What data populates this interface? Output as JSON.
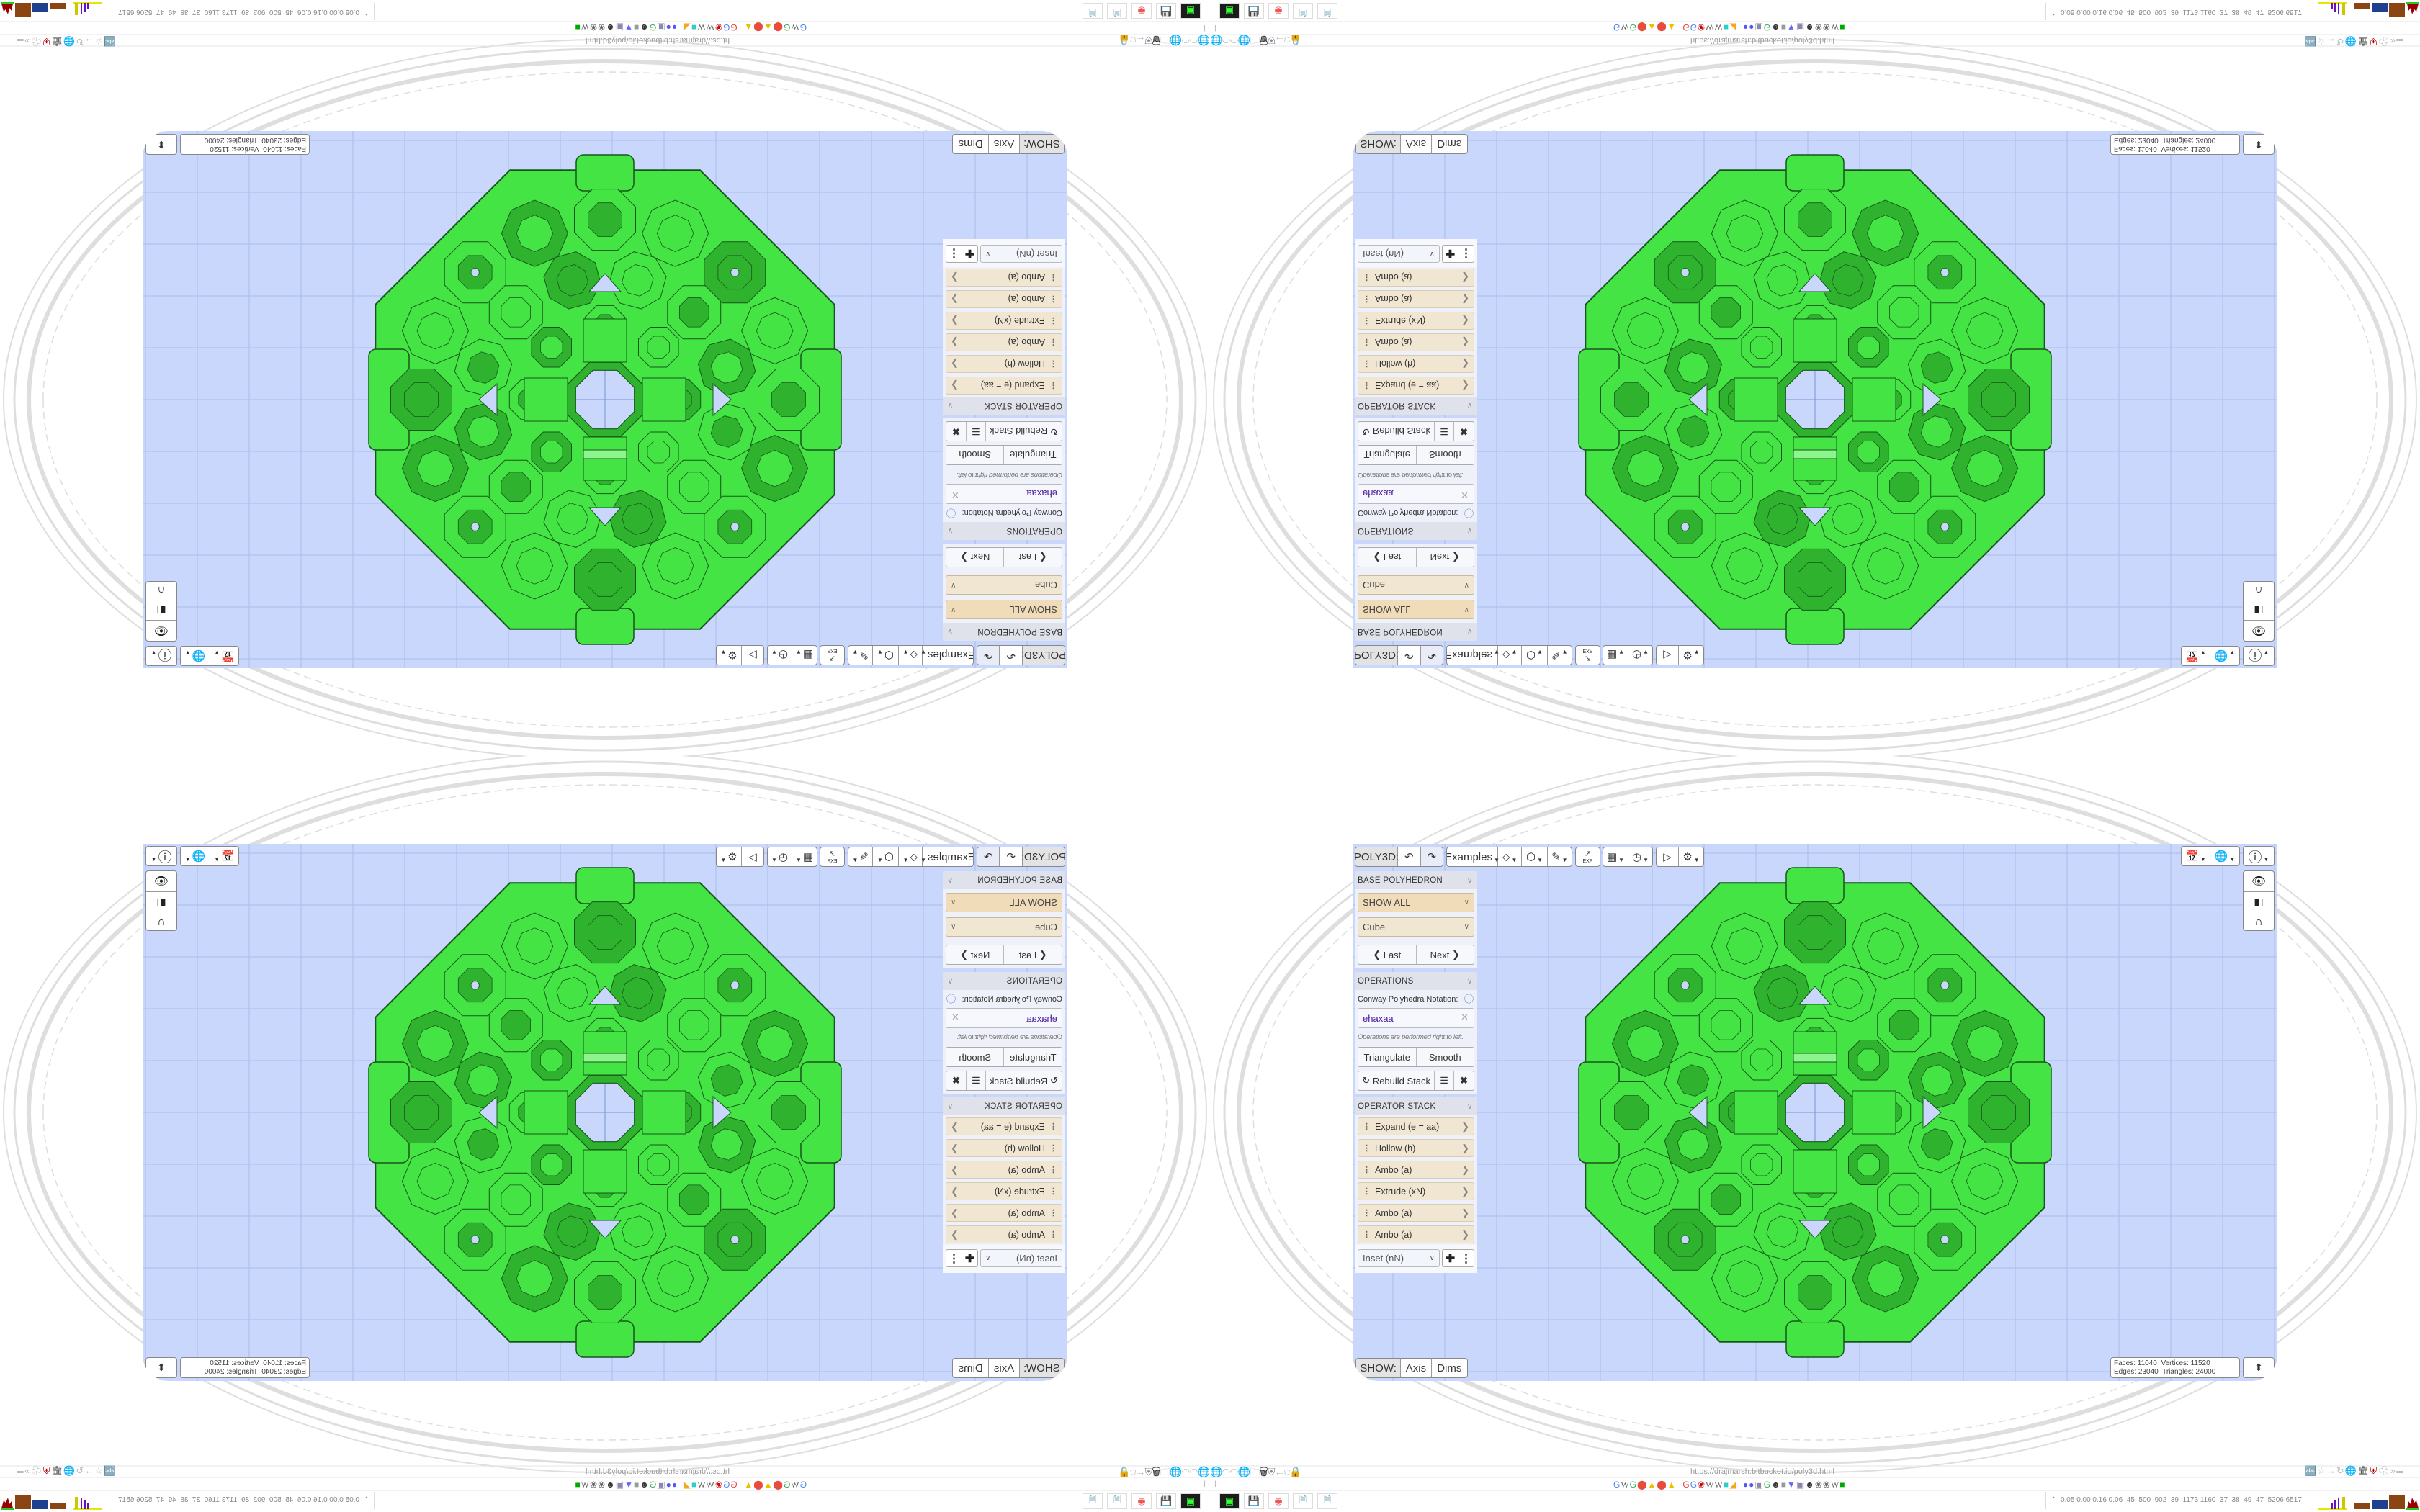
{
  "toolbar": {
    "app_label": "POLY3D:",
    "undo_icon": "undo-icon",
    "redo_icon": "redo-icon",
    "examples_label": "Examples",
    "tools": [
      "paint-bucket-icon",
      "cube-icon",
      "pencil-ruler-icon",
      "export-icon",
      "calendar-icon",
      "clock-icon",
      "play-icon",
      "gear-icon"
    ],
    "export_text": "EXP"
  },
  "right_toolbar": {
    "buttons": [
      "calendar-clock-icon",
      "globe-icon",
      "info-icon"
    ],
    "vertical": [
      "eye-icon",
      "toggle-icon",
      "magnet-icon"
    ]
  },
  "base_polyhedron": {
    "header": "BASE POLYHEDRON",
    "filter_value": "SHOW ALL",
    "shape_value": "Cube",
    "last_label": "Last",
    "next_label": "Next"
  },
  "operations": {
    "header": "OPERATIONS",
    "notation_label": "Conway Polyhedra Notation:",
    "notation_value": "ehaxaa",
    "hint": "Operations are performed right to left.",
    "triangulate_label": "Triangulate",
    "smooth_label": "Smooth",
    "rebuild_label": "Rebuild Stack"
  },
  "operator_stack": {
    "header": "OPERATOR STACK",
    "items": [
      "Expand (e = aa)",
      "Hollow (h)",
      "Ambo (a)",
      "Extrude (xN)",
      "Ambo (a)",
      "Ambo (a)"
    ],
    "add_select_value": "Inset (nN)"
  },
  "show_bar": {
    "label": "SHOW:",
    "axis_label": "Axis",
    "dims_label": "Dims"
  },
  "stats": {
    "faces_label": "Faces:",
    "faces": "11040",
    "vertices_label": "Vertices:",
    "vertices": "11520",
    "edges_label": "Edges:",
    "edges": "23040",
    "triangles_label": "Triangles:",
    "triangles": "24000"
  },
  "browser": {
    "url": "https://drajmarsh.bitbucket.io/poly3d.html",
    "taskbar_stats": "0.05 0.00 0.16 0.06  45  500  902  39  1173 1160  37  38  49  47  5206 6517"
  },
  "colors": {
    "viewport_bg": "#c8d7fb",
    "grid": "#a9bdee",
    "poly_fill": "#44e444",
    "poly_dark": "#2fb32f",
    "poly_light": "#8cf58c",
    "poly_edge": "#17561a",
    "notation_text": "#4b1a9a",
    "accent_select": "#f0dcb8"
  }
}
